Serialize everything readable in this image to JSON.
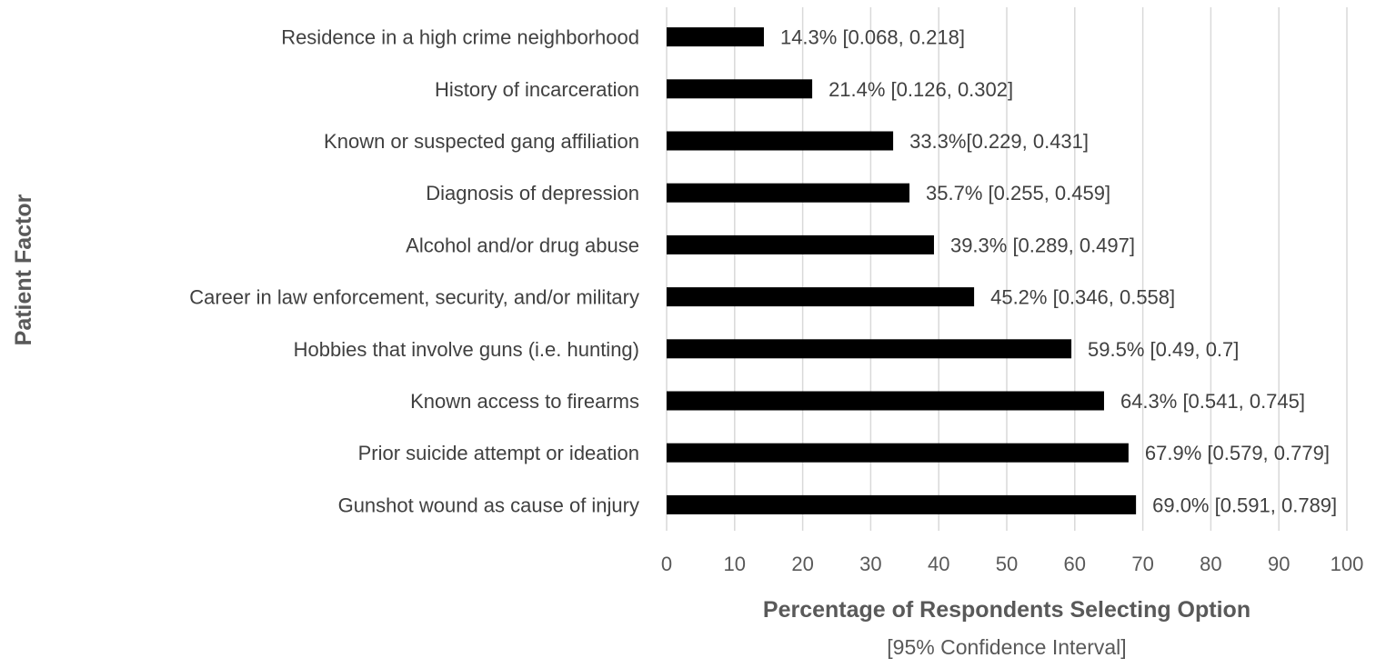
{
  "chart_data": {
    "type": "bar",
    "orientation": "horizontal",
    "categories": [
      "Residence in a high crime neighborhood",
      "History of incarceration",
      "Known or suspected gang affiliation",
      "Diagnosis of depression",
      "Alcohol and/or drug abuse",
      "Career in law enforcement, security, and/or military",
      "Hobbies that involve guns (i.e. hunting)",
      "Known access to firearms",
      "Prior suicide attempt or ideation",
      "Gunshot wound as cause of injury"
    ],
    "values": [
      14.3,
      21.4,
      33.3,
      35.7,
      39.3,
      45.2,
      59.5,
      64.3,
      67.9,
      69.0
    ],
    "data_labels": [
      "14.3% [0.068, 0.218]",
      "21.4% [0.126, 0.302]",
      "33.3%[0.229, 0.431]",
      "35.7% [0.255, 0.459]",
      "39.3% [0.289, 0.497]",
      "45.2% [0.346, 0.558]",
      "59.5% [0.49, 0.7]",
      "64.3% [0.541, 0.745]",
      "67.9% [0.579, 0.779]",
      "69.0% [0.591, 0.789]"
    ],
    "xlabel": "Percentage of Respondents Selecting Option",
    "xlabel_sub": "[95% Confidence Interval]",
    "ylabel": "Patient Factor",
    "xlim": [
      0,
      100
    ],
    "xticks": [
      0,
      10,
      20,
      30,
      40,
      50,
      60,
      70,
      80,
      90,
      100
    ],
    "grid": true,
    "legend": "none",
    "bar_color": "#000000",
    "gridline_color": "#d9d9d9",
    "text_color": "#404040"
  }
}
